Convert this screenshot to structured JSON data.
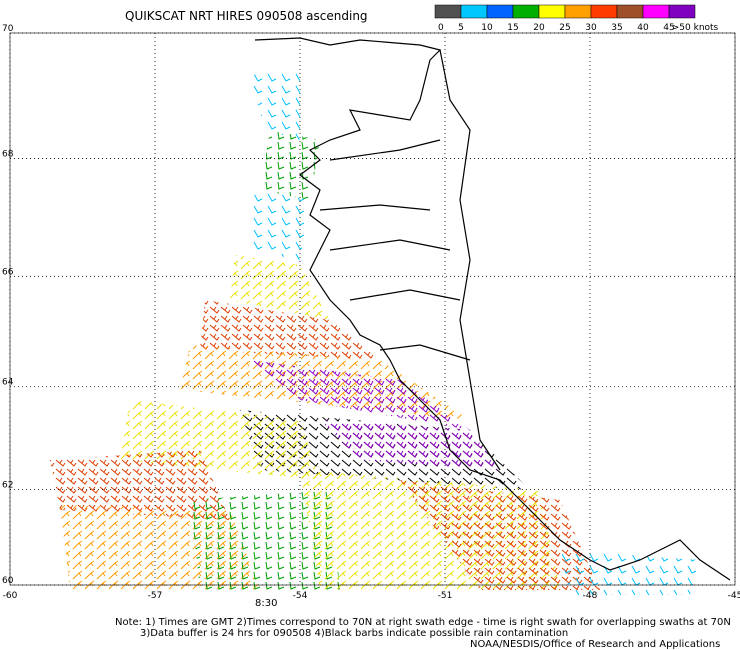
{
  "title": "QUIKSCAT NRT HIRES 090508 ascending",
  "legend": {
    "labels": [
      "0",
      "5",
      "10",
      "15",
      "20",
      "25",
      "30",
      "35",
      "40",
      "45",
      ">50 knots"
    ],
    "colors": [
      "#505050",
      "#00c8ff",
      "#0064ff",
      "#00b000",
      "#ffff00",
      "#ffa000",
      "#ff3c00",
      "#a05028",
      "#ff00ff",
      "#8000c0"
    ]
  },
  "map": {
    "xlim": [
      -60,
      -45
    ],
    "ylim": [
      60,
      70
    ],
    "xticks": [
      -60,
      -57,
      -54,
      -51,
      -48,
      -45
    ],
    "yticks": [
      70,
      68,
      66,
      64,
      62,
      60
    ],
    "grid": true
  },
  "swath_time": "8:30",
  "notes": [
    "Note: 1) Times are GMT 2)Times correspond to 70N at right swath edge - time is right swath for overlapping swaths at 70N",
    "3)Data buffer is 24 hrs for 090508 4)Black barbs indicate possible rain contamination",
    "NOAA/NESDIS/Office of Research and Applications"
  ]
}
